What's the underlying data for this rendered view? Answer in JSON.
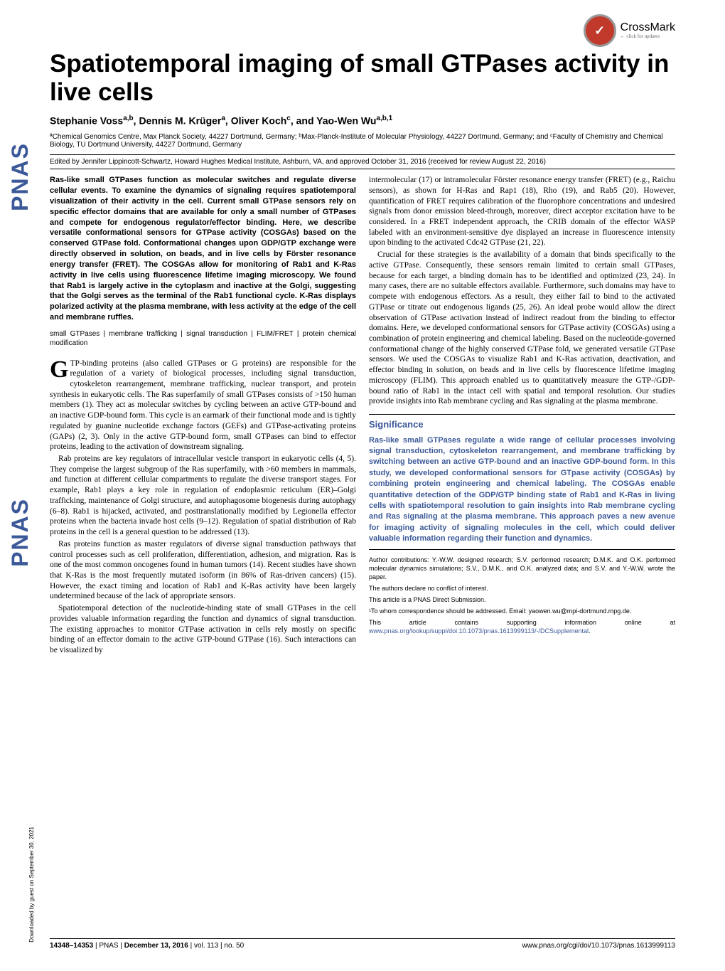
{
  "crossmark": {
    "label": "CrossMark",
    "sub": "← click for updates"
  },
  "sidebar": {
    "logo": "PNAS"
  },
  "downloaded": "Downloaded by guest on September 30, 2021",
  "title": "Spatiotemporal imaging of small GTPases activity in live cells",
  "authors_html": "Stephanie Voss<sup>a,b</sup>, Dennis M. Krüger<sup>a</sup>, Oliver Koch<sup>c</sup>, and Yao-Wen Wu<sup>a,b,1</sup>",
  "affiliations": "ªChemical Genomics Centre, Max Planck Society, 44227 Dortmund, Germany; ᵇMax-Planck-Institute of Molecular Physiology, 44227 Dortmund, Germany; and ᶜFaculty of Chemistry and Chemical Biology, TU Dortmund University, 44227 Dortmund, Germany",
  "edited": "Edited by Jennifer Lippincott-Schwartz, Howard Hughes Medical Institute, Ashburn, VA, and approved October 31, 2016 (received for review August 22, 2016)",
  "abstract": "Ras-like small GTPases function as molecular switches and regulate diverse cellular events. To examine the dynamics of signaling requires spatiotemporal visualization of their activity in the cell. Current small GTPase sensors rely on specific effector domains that are available for only a small number of GTPases and compete for endogenous regulator/effector binding. Here, we describe versatile conformational sensors for GTPase activity (COSGAs) based on the conserved GTPase fold. Conformational changes upon GDP/GTP exchange were directly observed in solution, on beads, and in live cells by Förster resonance energy transfer (FRET). The COSGAs allow for monitoring of Rab1 and K-Ras activity in live cells using fluorescence lifetime imaging microscopy. We found that Rab1 is largely active in the cytoplasm and inactive at the Golgi, suggesting that the Golgi serves as the terminal of the Rab1 functional cycle. K-Ras displays polarized activity at the plasma membrane, with less activity at the edge of the cell and membrane ruffles.",
  "keywords": "small GTPases | membrane trafficking | signal transduction | FLIM/FRET | protein chemical modification",
  "body": {
    "col1": {
      "dropcap": "G",
      "p1": "TP-binding proteins (also called GTPases or G proteins) are responsible for the regulation of a variety of biological processes, including signal transduction, cytoskeleton rearrangement, membrane trafficking, nuclear transport, and protein synthesis in eukaryotic cells. The Ras superfamily of small GTPases consists of >150 human members (1). They act as molecular switches by cycling between an active GTP-bound and an inactive GDP-bound form. This cycle is an earmark of their functional mode and is tightly regulated by guanine nucleotide exchange factors (GEFs) and GTPase-activating proteins (GAPs) (2, 3). Only in the active GTP-bound form, small GTPases can bind to effector proteins, leading to the activation of downstream signaling.",
      "p2": "Rab proteins are key regulators of intracellular vesicle transport in eukaryotic cells (4, 5). They comprise the largest subgroup of the Ras superfamily, with >60 members in mammals, and function at different cellular compartments to regulate the diverse transport stages. For example, Rab1 plays a key role in regulation of endoplasmic reticulum (ER)–Golgi trafficking, maintenance of Golgi structure, and autophagosome biogenesis during autophagy (6–8). Rab1 is hijacked, activated, and posttranslationally modified by Legionella effector proteins when the bacteria invade host cells (9–12). Regulation of spatial distribution of Rab proteins in the cell is a general question to be addressed (13).",
      "p3": "Ras proteins function as master regulators of diverse signal transduction pathways that control processes such as cell proliferation, differentiation, adhesion, and migration. Ras is one of the most common oncogenes found in human tumors (14). Recent studies have shown that K-Ras is the most frequently mutated isoform (in 86% of Ras-driven cancers) (15). However, the exact timing and location of Rab1 and K-Ras activity have been largely undetermined because of the lack of appropriate sensors.",
      "p4": "Spatiotemporal detection of the nucleotide-binding state of small GTPases in the cell provides valuable information regarding the function and dynamics of signal transduction. The existing approaches to monitor GTPase activation in cells rely mostly on specific binding of an effector domain to the active GTP-bound GTPase (16). Such interactions can be visualized by"
    },
    "col2": {
      "p1": "intermolecular (17) or intramolecular Förster resonance energy transfer (FRET) (e.g., Raichu sensors), as shown for H-Ras and Rap1 (18), Rho (19), and Rab5 (20). However, quantification of FRET requires calibration of the fluorophore concentrations and undesired signals from donor emission bleed-through, moreover, direct acceptor excitation have to be considered. In a FRET independent approach, the CRIB domain of the effector WASP labeled with an environment-sensitive dye displayed an increase in fluorescence intensity upon binding to the activated Cdc42 GTPase (21, 22).",
      "p2": "Crucial for these strategies is the availability of a domain that binds specifically to the active GTPase. Consequently, these sensors remain limited to certain small GTPases, because for each target, a binding domain has to be identified and optimized (23, 24). In many cases, there are no suitable effectors available. Furthermore, such domains may have to compete with endogenous effectors. As a result, they either fail to bind to the activated GTPase or titrate out endogenous ligands (25, 26). An ideal probe would allow the direct observation of GTPase activation instead of indirect readout from the binding to effector domains. Here, we developed conformational sensors for GTPase activity (COSGAs) using a combination of protein engineering and chemical labeling. Based on the nucleotide-governed conformational change of the highly conserved GTPase fold, we generated versatile GTPase sensors. We used the COSGAs to visualize Rab1 and K-Ras activation, deactivation, and effector binding in solution, on beads and in live cells by fluorescence lifetime imaging microscopy (FLIM). This approach enabled us to quantitatively measure the GTP-/GDP-bound ratio of Rab1 in the intact cell with spatial and temporal resolution. Our studies provide insights into Rab membrane cycling and Ras signaling at the plasma membrane."
    }
  },
  "significance": {
    "head": "Significance",
    "body": "Ras-like small GTPases regulate a wide range of cellular processes involving signal transduction, cytoskeleton rearrangement, and membrane trafficking by switching between an active GTP-bound and an inactive GDP-bound form. In this study, we developed conformational sensors for GTpase activity (COSGAs) by combining protein engineering and chemical labeling. The COSGAs enable quantitative detection of the GDP/GTP binding state of Rab1 and K-Ras in living cells with spatiotemporal resolution to gain insights into Rab membrane cycling and Ras signaling at the plasma membrane. This approach paves a new avenue for imaging activity of signaling molecules in the cell, which could deliver valuable information regarding their function and dynamics."
  },
  "footnotes": {
    "contrib": "Author contributions: Y.-W.W. designed research; S.V. performed research; D.M.K. and O.K. performed molecular dynamics simulations; S.V., D.M.K., and O.K. analyzed data; and S.V. and Y.-W.W. wrote the paper.",
    "conflict": "The authors declare no conflict of interest.",
    "direct": "This article is a PNAS Direct Submission.",
    "corr": "¹To whom correspondence should be addressed. Email: yaowen.wu@mpi-dortmund.mpg.de.",
    "supp": "This article contains supporting information online at ",
    "supp_link": "www.pnas.org/lookup/suppl/doi:10.1073/pnas.1613999113/-/DCSupplemental",
    "supp_end": "."
  },
  "footer": {
    "left": "14348–14353  |  PNAS  |  December 13, 2016  |  vol. 113  |  no. 50",
    "right": "www.pnas.org/cgi/doi/10.1073/pnas.1613999113"
  },
  "colors": {
    "pnas_blue": "#3b5998",
    "crossmark_red": "#c0392b"
  },
  "typography": {
    "title_fontsize": 35,
    "body_fontsize": 11.5,
    "abstract_fontsize": 11,
    "footnote_fontsize": 9
  }
}
